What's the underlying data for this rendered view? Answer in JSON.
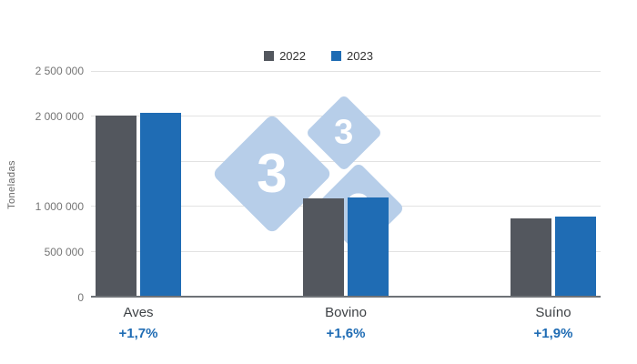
{
  "chart_data": {
    "type": "bar",
    "ylabel": "Toneladas",
    "categories": [
      "Aves",
      "Bovino",
      "Suíno"
    ],
    "series": [
      {
        "name": "2022",
        "color": "#53575e",
        "values": [
          2000000,
          1080000,
          860000
        ]
      },
      {
        "name": "2023",
        "color": "#1f6cb4",
        "values": [
          2034000,
          1097000,
          876000
        ]
      }
    ],
    "growth_labels": [
      "+1,7%",
      "+1,6%",
      "+1,9%"
    ],
    "ylim": [
      0,
      2500000
    ],
    "yticks": [
      {
        "value": 2500000,
        "label": "2 500 000"
      },
      {
        "value": 2000000,
        "label": "2 000 000"
      },
      {
        "value": 1500000,
        "label": ""
      },
      {
        "value": 1000000,
        "label": "1 000 000"
      },
      {
        "value": 500000,
        "label": "500 000"
      },
      {
        "value": 0,
        "label": "0"
      }
    ],
    "grid": true,
    "legend_position": "top"
  },
  "watermark": {
    "chars": [
      "3",
      "3",
      "3"
    ],
    "color": "#b7cee9"
  },
  "colors": {
    "growth_text": "#1f6cb4",
    "grid": "#e2e2e2",
    "axis": "#6e7277",
    "tick_text": "#757575",
    "category_text": "#3e4246"
  }
}
